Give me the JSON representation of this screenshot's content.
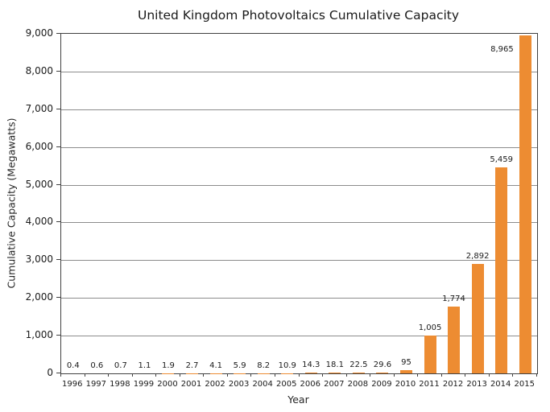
{
  "chart_data": {
    "type": "bar",
    "title": "United Kingdom Photovoltaics Cumulative Capacity",
    "xlabel": "Year",
    "ylabel": "Cumulative Capacity (Megawatts)",
    "categories": [
      "1996",
      "1997",
      "1998",
      "1999",
      "2000",
      "2001",
      "2002",
      "2003",
      "2004",
      "2005",
      "2006",
      "2007",
      "2008",
      "2009",
      "2010",
      "2011",
      "2012",
      "2013",
      "2014",
      "2015"
    ],
    "values": [
      0.4,
      0.6,
      0.7,
      1.1,
      1.9,
      2.7,
      4.1,
      5.9,
      8.2,
      10.9,
      14.3,
      18.1,
      22.5,
      29.6,
      95,
      1005,
      1774,
      2892,
      5459,
      8965
    ],
    "data_labels": [
      "0.4",
      "0.6",
      "0.7",
      "1.1",
      "1.9",
      "2.7",
      "4.1",
      "5.9",
      "8.2",
      "10.9",
      "14.3",
      "18.1",
      "22.5",
      "29.6",
      "95",
      "1,005",
      "1,774",
      "2,892",
      "5,459",
      "8,965"
    ],
    "ylim": [
      0,
      9000
    ],
    "ytick_step": 1000,
    "ytick_labels": [
      "0",
      "1,000",
      "2,000",
      "3,000",
      "4,000",
      "5,000",
      "6,000",
      "7,000",
      "8,000",
      "9,000"
    ],
    "bar_color": "#ED8C32",
    "grid": true,
    "gridline_color": "#8c8c8c",
    "legend": "none"
  }
}
